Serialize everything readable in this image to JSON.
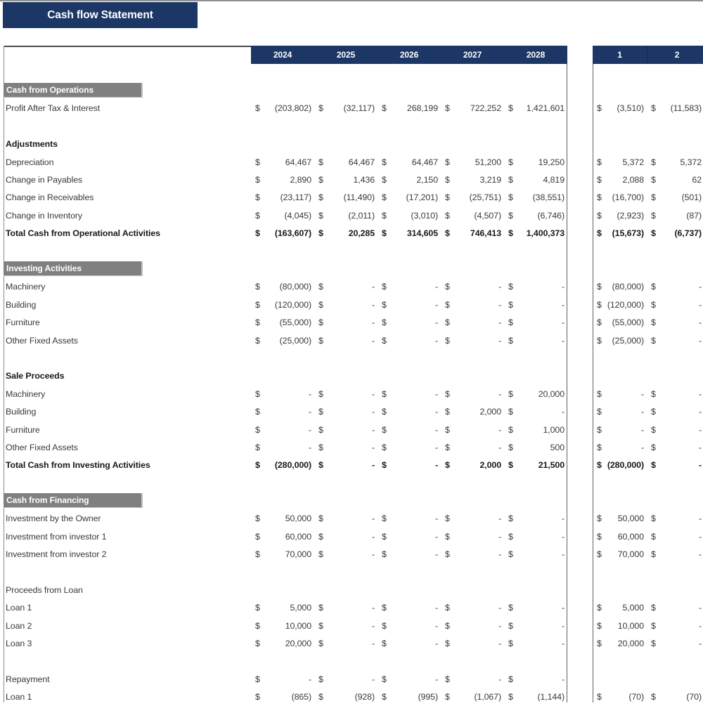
{
  "title": "Cash flow Statement",
  "currency_symbol": "$",
  "colors": {
    "navy": "#1c3766",
    "section_bar": "#808080",
    "header_text": "#ffffff",
    "body_text": "#3a3a3a"
  },
  "main_table": {
    "year_columns": [
      "2024",
      "2025",
      "2026",
      "2027",
      "2028"
    ]
  },
  "right_panel": {
    "period_columns": [
      "1",
      "2"
    ]
  },
  "rows": [
    {
      "type": "blank"
    },
    {
      "type": "section",
      "label": "Cash from Operations"
    },
    {
      "type": "data",
      "label": "Profit After Tax & Interest",
      "values": [
        "(203,802)",
        "(32,117)",
        "268,199",
        "722,252",
        "1,421,601"
      ],
      "extra": [
        "(3,510)",
        "(11,583)"
      ]
    },
    {
      "type": "blank"
    },
    {
      "type": "heading-bold",
      "label": "Adjustments"
    },
    {
      "type": "data",
      "label": "Depreciation",
      "values": [
        "64,467",
        "64,467",
        "64,467",
        "51,200",
        "19,250"
      ],
      "extra": [
        "5,372",
        "5,372"
      ]
    },
    {
      "type": "data",
      "label": "Change in Payables",
      "values": [
        "2,890",
        "1,436",
        "2,150",
        "3,219",
        "4,819"
      ],
      "extra": [
        "2,088",
        "62"
      ]
    },
    {
      "type": "data",
      "label": "Change in Receivables",
      "values": [
        "(23,117)",
        "(11,490)",
        "(17,201)",
        "(25,751)",
        "(38,551)"
      ],
      "extra": [
        "(16,700)",
        "(501)"
      ]
    },
    {
      "type": "data",
      "label": "Change in Inventory",
      "values": [
        "(4,045)",
        "(2,011)",
        "(3,010)",
        "(4,507)",
        "(6,746)"
      ],
      "extra": [
        "(2,923)",
        "(87)"
      ]
    },
    {
      "type": "total",
      "label": "Total Cash from Operational Activities",
      "values": [
        "(163,607)",
        "20,285",
        "314,605",
        "746,413",
        "1,400,373"
      ],
      "extra": [
        "(15,673)",
        "(6,737)"
      ]
    },
    {
      "type": "blank"
    },
    {
      "type": "section",
      "label": "Investing Activities"
    },
    {
      "type": "data",
      "label": "Machinery",
      "values": [
        "(80,000)",
        "-",
        "-",
        "-",
        "-"
      ],
      "extra": [
        "(80,000)",
        "-"
      ]
    },
    {
      "type": "data",
      "label": "Building",
      "values": [
        "(120,000)",
        "-",
        "-",
        "-",
        "-"
      ],
      "extra": [
        "(120,000)",
        "-"
      ]
    },
    {
      "type": "data",
      "label": "Furniture",
      "values": [
        "(55,000)",
        "-",
        "-",
        "-",
        "-"
      ],
      "extra": [
        "(55,000)",
        "-"
      ]
    },
    {
      "type": "data",
      "label": "Other Fixed Assets",
      "values": [
        "(25,000)",
        "-",
        "-",
        "-",
        "-"
      ],
      "extra": [
        "(25,000)",
        "-"
      ]
    },
    {
      "type": "blank"
    },
    {
      "type": "heading-bold",
      "label": "Sale Proceeds"
    },
    {
      "type": "data",
      "label": "Machinery",
      "values": [
        "-",
        "-",
        "-",
        "-",
        "20,000"
      ],
      "extra": [
        "-",
        "-"
      ]
    },
    {
      "type": "data",
      "label": "Building",
      "values": [
        "-",
        "-",
        "-",
        "2,000",
        "-"
      ],
      "extra": [
        "-",
        "-"
      ]
    },
    {
      "type": "data",
      "label": "Furniture",
      "values": [
        "-",
        "-",
        "-",
        "-",
        "1,000"
      ],
      "extra": [
        "-",
        "-"
      ]
    },
    {
      "type": "data",
      "label": "Other Fixed Assets",
      "values": [
        "-",
        "-",
        "-",
        "-",
        "500"
      ],
      "extra": [
        "-",
        "-"
      ]
    },
    {
      "type": "total",
      "label": "Total Cash from Investing Activities",
      "values": [
        "(280,000)",
        "-",
        "-",
        "2,000",
        "21,500"
      ],
      "extra": [
        "(280,000)",
        "-"
      ]
    },
    {
      "type": "blank"
    },
    {
      "type": "section",
      "label": "Cash from Financing"
    },
    {
      "type": "data",
      "label": "Investment by the Owner",
      "values": [
        "50,000",
        "-",
        "-",
        "-",
        "-"
      ],
      "extra": [
        "50,000",
        "-"
      ]
    },
    {
      "type": "data",
      "label": "Investment from investor 1",
      "values": [
        "60,000",
        "-",
        "-",
        "-",
        "-"
      ],
      "extra": [
        "60,000",
        "-"
      ]
    },
    {
      "type": "data",
      "label": "Investment from investor 2",
      "values": [
        "70,000",
        "-",
        "-",
        "-",
        "-"
      ],
      "extra": [
        "70,000",
        "-"
      ]
    },
    {
      "type": "blank"
    },
    {
      "type": "heading",
      "label": "Proceeds from Loan"
    },
    {
      "type": "data",
      "label": "Loan 1",
      "values": [
        "5,000",
        "-",
        "-",
        "-",
        "-"
      ],
      "extra": [
        "5,000",
        "-"
      ]
    },
    {
      "type": "data",
      "label": "Loan 2",
      "values": [
        "10,000",
        "-",
        "-",
        "-",
        "-"
      ],
      "extra": [
        "10,000",
        "-"
      ]
    },
    {
      "type": "data",
      "label": "Loan 3",
      "values": [
        "20,000",
        "-",
        "-",
        "-",
        "-"
      ],
      "extra": [
        "20,000",
        "-"
      ]
    },
    {
      "type": "blank"
    },
    {
      "type": "data",
      "label": "Repayment",
      "values": [
        "-",
        "-",
        "-",
        "-",
        "-"
      ],
      "extra": null
    },
    {
      "type": "data",
      "label": "Loan 1",
      "values": [
        "(865)",
        "(928)",
        "(995)",
        "(1,067)",
        "(1,144)"
      ],
      "extra": [
        "(70)",
        "(70)"
      ]
    }
  ]
}
